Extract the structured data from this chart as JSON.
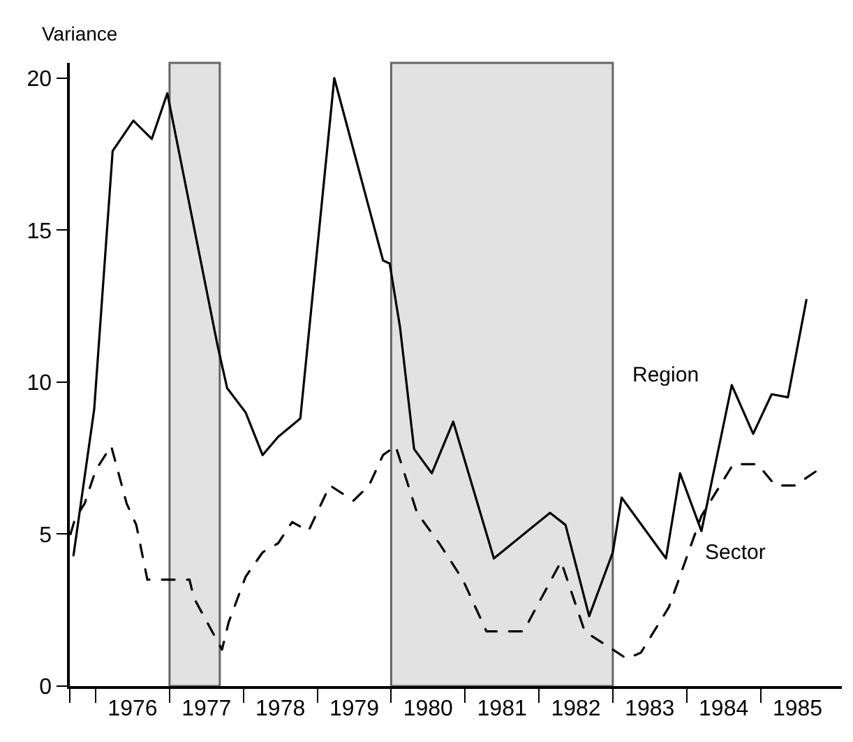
{
  "chart_data": {
    "type": "line",
    "ylabel": "Variance",
    "legend": false,
    "grid": false,
    "xlim": [
      1975.65,
      1986.1
    ],
    "ylim": [
      0,
      20.5
    ],
    "yticks": [
      0,
      5,
      10,
      15,
      20
    ],
    "xticks": [
      {
        "value": 1975.65,
        "label": null
      },
      {
        "value": 1976,
        "label": null
      },
      {
        "value": 1976.5,
        "label": "1976"
      },
      {
        "value": 1977,
        "label": null
      },
      {
        "value": 1977.5,
        "label": "1977"
      },
      {
        "value": 1978,
        "label": null
      },
      {
        "value": 1978.5,
        "label": "1978"
      },
      {
        "value": 1979,
        "label": null
      },
      {
        "value": 1979.5,
        "label": "1979"
      },
      {
        "value": 1980,
        "label": null
      },
      {
        "value": 1980.5,
        "label": "1980"
      },
      {
        "value": 1981,
        "label": null
      },
      {
        "value": 1981.5,
        "label": "1981"
      },
      {
        "value": 1982,
        "label": null
      },
      {
        "value": 1982.5,
        "label": "1982"
      },
      {
        "value": 1983,
        "label": null
      },
      {
        "value": 1983.5,
        "label": "1983"
      },
      {
        "value": 1984,
        "label": null
      },
      {
        "value": 1984.5,
        "label": "1984"
      },
      {
        "value": 1985,
        "label": null
      },
      {
        "value": 1985.5,
        "label": "1985"
      }
    ],
    "bands": [
      {
        "axis": "x",
        "from": 1977.0,
        "to": 1977.68,
        "color": "#d0d0d0"
      },
      {
        "axis": "x",
        "from": 1980.0,
        "to": 1983.0,
        "color": "#d0d0d0"
      }
    ],
    "series": [
      {
        "name": "Region",
        "color": "#000000",
        "line_style": "solid",
        "x": [
          1975.7,
          1975.98,
          1976.23,
          1976.51,
          1976.76,
          1976.97,
          1977.65,
          1977.78,
          1978.03,
          1978.26,
          1978.47,
          1978.77,
          1979.23,
          1979.89,
          1979.98,
          1980.12,
          1980.31,
          1980.55,
          1980.84,
          1981.39,
          1982.15,
          1982.36,
          1982.68,
          1983.0,
          1983.12,
          1983.72,
          1983.91,
          1984.2,
          1984.61,
          1984.9,
          1985.15,
          1985.37,
          1985.62
        ],
        "values": [
          4.3,
          9.1,
          17.6,
          18.6,
          18.0,
          19.5,
          11.2,
          9.8,
          9.0,
          7.6,
          8.2,
          8.8,
          20.0,
          14.0,
          13.9,
          11.8,
          7.8,
          7.0,
          8.7,
          4.2,
          5.7,
          5.3,
          2.3,
          4.4,
          6.2,
          4.2,
          7.0,
          5.1,
          9.9,
          8.3,
          9.6,
          9.5,
          12.7
        ]
      },
      {
        "name": "Sector",
        "color": "#000000",
        "line_style": "dashed",
        "x": [
          1975.66,
          1975.72,
          1975.85,
          1976.0,
          1976.21,
          1976.42,
          1976.55,
          1976.7,
          1977.27,
          1977.33,
          1977.71,
          1977.8,
          1978.03,
          1978.26,
          1978.47,
          1978.66,
          1978.88,
          1979.17,
          1979.49,
          1979.7,
          1979.89,
          1980.06,
          1980.35,
          1980.65,
          1980.97,
          1981.29,
          1981.79,
          1982.3,
          1982.62,
          1983.19,
          1983.38,
          1983.76,
          1984.2,
          1984.63,
          1984.96,
          1985.2,
          1985.47,
          1985.77
        ],
        "values": [
          5.0,
          5.5,
          6.0,
          7.1,
          7.9,
          6.0,
          5.3,
          3.5,
          3.5,
          2.9,
          1.2,
          2.1,
          3.6,
          4.4,
          4.7,
          5.4,
          5.1,
          6.6,
          6.1,
          6.6,
          7.6,
          7.9,
          5.7,
          4.7,
          3.5,
          1.8,
          1.8,
          4.1,
          1.8,
          0.9,
          1.1,
          2.6,
          5.6,
          7.3,
          7.3,
          6.6,
          6.6,
          7.1
        ]
      }
    ]
  }
}
